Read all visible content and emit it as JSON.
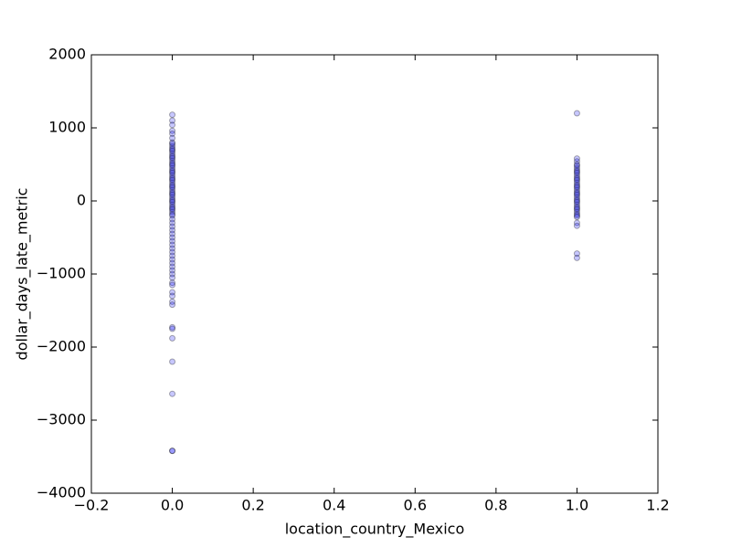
{
  "chart_data": {
    "type": "scatter",
    "x_label": "location_country_Mexico",
    "y_label": "dollar_days_late_metric",
    "x": [
      0,
      0,
      0,
      0,
      0,
      0,
      0,
      0,
      0,
      0,
      0,
      0,
      0,
      0,
      0,
      0,
      0,
      0,
      0,
      0,
      0,
      0,
      0,
      0,
      0,
      0,
      0,
      0,
      0,
      0,
      0,
      0,
      0,
      0,
      0,
      0,
      0,
      0,
      0,
      0,
      0,
      0,
      0,
      0,
      0,
      0,
      0,
      0,
      0,
      0,
      0,
      0,
      0,
      0,
      0,
      0,
      0,
      0,
      0,
      0,
      0,
      0,
      0,
      0,
      0,
      0,
      0,
      0,
      0,
      0,
      0,
      0,
      0,
      0,
      0,
      0,
      0,
      1,
      1,
      1,
      1,
      1,
      1,
      1,
      1,
      1,
      1,
      1,
      1,
      1,
      1,
      1,
      1,
      1,
      1,
      1,
      1,
      1,
      1,
      1,
      1,
      1,
      1,
      1,
      1,
      1,
      1,
      1,
      1,
      1,
      1,
      1,
      1,
      1
    ],
    "values": [
      1180,
      1100,
      1040,
      960,
      920,
      860,
      800,
      780,
      750,
      720,
      700,
      680,
      650,
      620,
      600,
      580,
      550,
      520,
      500,
      480,
      450,
      420,
      400,
      380,
      350,
      320,
      300,
      280,
      250,
      220,
      200,
      180,
      150,
      120,
      100,
      80,
      50,
      20,
      0,
      -20,
      -50,
      -80,
      -100,
      -120,
      -150,
      -180,
      -200,
      -250,
      -300,
      -350,
      -400,
      -450,
      -500,
      -550,
      -600,
      -650,
      -700,
      -750,
      -800,
      -850,
      -900,
      -950,
      -1000,
      -1050,
      -1120,
      -1150,
      -1250,
      -1300,
      -1380,
      -1420,
      -1730,
      -1750,
      -1880,
      -2200,
      -2640,
      -3420,
      -3420,
      1200,
      580,
      540,
      500,
      480,
      450,
      420,
      400,
      380,
      350,
      320,
      300,
      280,
      250,
      220,
      200,
      180,
      150,
      120,
      100,
      80,
      50,
      20,
      0,
      -20,
      -50,
      -80,
      -100,
      -120,
      -150,
      -180,
      -200,
      -220,
      -300,
      -340,
      -720,
      -780
    ],
    "color": "#0000ff",
    "alpha": 0.22,
    "xlim": [
      -0.2,
      1.2
    ],
    "xticks": [
      {
        "value": -0.2,
        "label": "−0.2"
      },
      {
        "value": 0,
        "label": "0.0"
      },
      {
        "value": 0.2,
        "label": "0.2"
      },
      {
        "value": 0.4,
        "label": "0.4"
      },
      {
        "value": 0.6,
        "label": "0.6"
      },
      {
        "value": 0.8,
        "label": "0.8"
      },
      {
        "value": 1,
        "label": "1.0"
      },
      {
        "value": 1.2,
        "label": "1.2"
      }
    ],
    "ylim": [
      -4000,
      2000
    ],
    "yticks": [
      {
        "value": -4000,
        "label": "−4000"
      },
      {
        "value": -3000,
        "label": "−3000"
      },
      {
        "value": -2000,
        "label": "−2000"
      },
      {
        "value": -1000,
        "label": "−1000"
      },
      0,
      1000,
      2000
    ]
  }
}
